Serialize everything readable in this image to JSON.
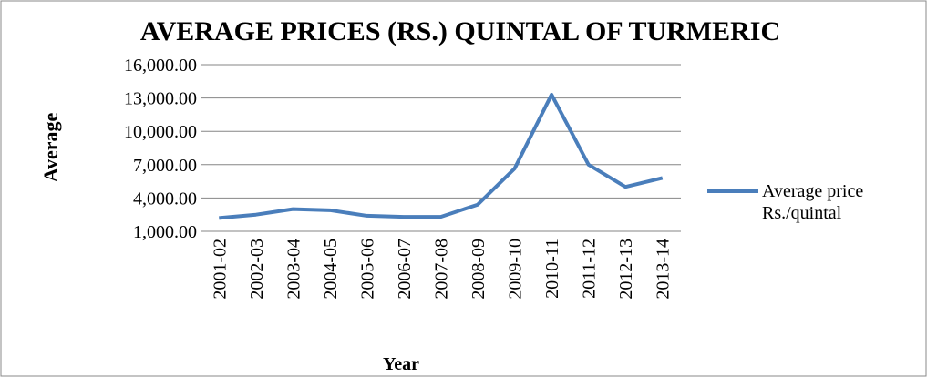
{
  "chart_data": {
    "type": "line",
    "title": "AVERAGE PRICES  (RS.) QUINTAL OF TURMERIC",
    "x_label": "Year",
    "y_label": "Average",
    "categories": [
      "2001-02",
      "2002-03",
      "2003-04",
      "2004-05",
      "2005-06",
      "2006-07",
      "2007-08",
      "2008-09",
      "2009-10",
      "2010-11",
      "2011-12",
      "2012-13",
      "2013-14"
    ],
    "series": [
      {
        "name": "Average price Rs./quintal",
        "color": "#4a7ebb",
        "values": [
          2200,
          2500,
          3000,
          2900,
          2400,
          2300,
          2300,
          3400,
          6650,
          13300,
          7000,
          5000,
          5800
        ]
      }
    ],
    "ylim": [
      1000,
      16000
    ],
    "yticks": [
      {
        "value": 1000,
        "label": "1,000.00"
      },
      {
        "value": 4000,
        "label": "4,000.00"
      },
      {
        "value": 7000,
        "label": "7,000.00"
      },
      {
        "value": 10000,
        "label": "10,000.00"
      },
      {
        "value": 13000,
        "label": "13,000.00"
      },
      {
        "value": 16000,
        "label": "16,000.00"
      }
    ],
    "grid": true,
    "legend": "right"
  }
}
